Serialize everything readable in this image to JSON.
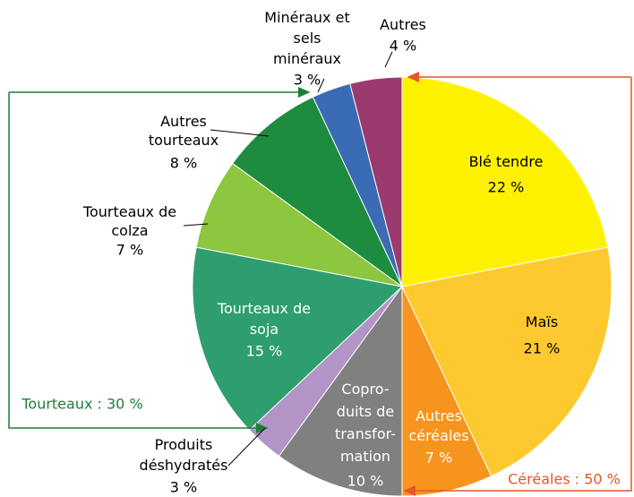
{
  "chart_data": {
    "type": "pie",
    "categories": [
      "Blé tendre",
      "Maïs",
      "Autres\ncéréales",
      "Copro-\nduits de\ntransfor-\nmation",
      "Produits\ndéshydratés",
      "Tourteaux de\nsoja",
      "Tourteaux de\ncolza",
      "Autres\ntourteaux",
      "Minéraux et\nsels\nminéraux",
      "Autres"
    ],
    "values": [
      22,
      21,
      7,
      10,
      3,
      15,
      7,
      8,
      3,
      4
    ],
    "value_labels": [
      "22 %",
      "21 %",
      "7 %",
      "10 %",
      "3 %",
      "15 %",
      "7 %",
      "8 %",
      "3 %",
      "4 %"
    ],
    "colors": [
      "#fff200",
      "#fec92e",
      "#f7941d",
      "#808080",
      "#b294c7",
      "#2e9e6e",
      "#8dc63f",
      "#1e8c3e",
      "#3a6bb5",
      "#9b3a6e"
    ],
    "annotations": [
      "Tourteaux : 30 %",
      "Céréales : 50 %"
    ]
  }
}
